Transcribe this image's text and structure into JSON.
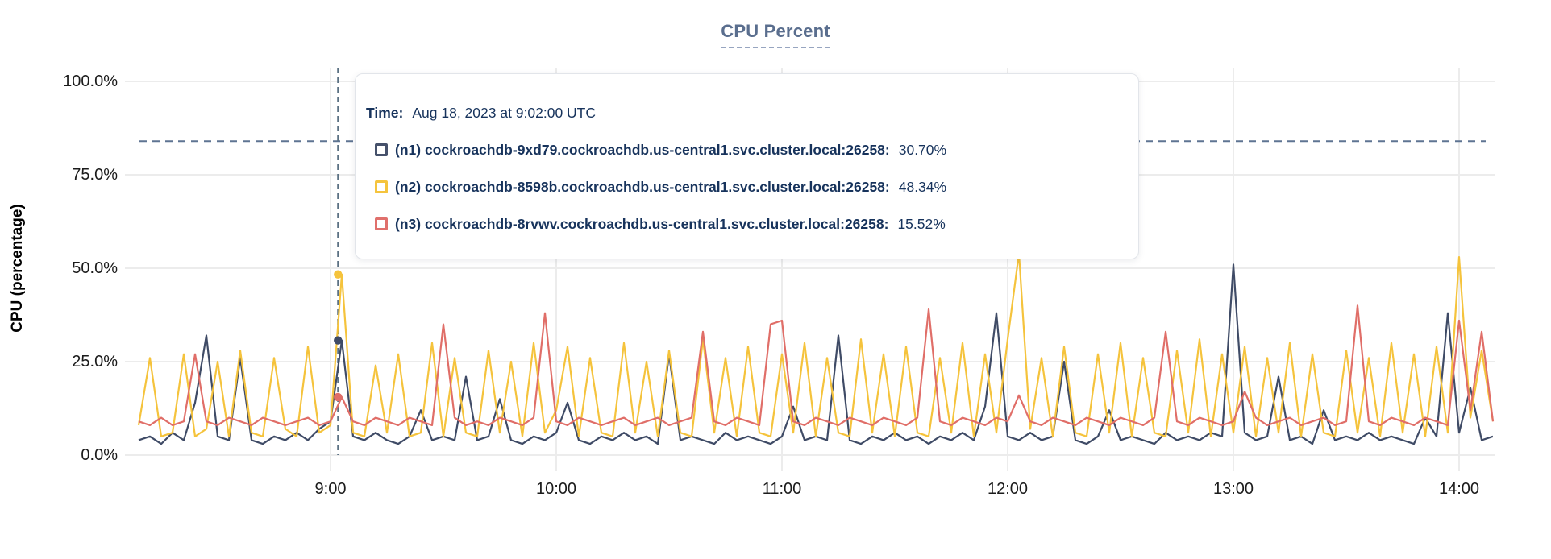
{
  "title": "CPU Percent",
  "y_axis_title": "CPU (percentage)",
  "tooltip": {
    "time_label": "Time:",
    "time_value": "Aug 18, 2023 at 9:02:00 UTC",
    "series": [
      {
        "label": "(n1) cockroachdb-9xd79.cockroachdb.us-central1.svc.cluster.local:26258:",
        "value": "30.70%",
        "color": "#46516b"
      },
      {
        "label": "(n2) cockroachdb-8598b.cockroachdb.us-central1.svc.cluster.local:26258:",
        "value": "48.34%",
        "color": "#f5c43d"
      },
      {
        "label": "(n3) cockroachdb-8rvwv.cockroachdb.us-central1.svc.cluster.local:26258:",
        "value": "15.52%",
        "color": "#e0706c"
      }
    ]
  },
  "colors": {
    "title": "#5a6e8e",
    "tooltip_text": "#17335c",
    "grid": "#ececec",
    "threshold_dash": "#5e7492",
    "crosshair_dash": "#5b7183",
    "tick_text": "#1b1b1b"
  },
  "chart_data": {
    "type": "line",
    "title": "CPU Percent",
    "xlabel": "",
    "ylabel": "CPU (percentage)",
    "ylim": [
      0,
      100
    ],
    "grid": true,
    "legend_position": "tooltip-overlay",
    "y_ticks": [
      {
        "value": 0,
        "label": "0.0%"
      },
      {
        "value": 25,
        "label": "25.0%"
      },
      {
        "value": 50,
        "label": "50.0%"
      },
      {
        "value": 75,
        "label": "75.0%"
      },
      {
        "value": 100,
        "label": "100.0%"
      }
    ],
    "x_ticks": [
      {
        "hour": 9,
        "label": "9:00"
      },
      {
        "hour": 10,
        "label": "10:00"
      },
      {
        "hour": 11,
        "label": "11:00"
      },
      {
        "hour": 12,
        "label": "12:00"
      },
      {
        "hour": 13,
        "label": "13:00"
      },
      {
        "hour": 14,
        "label": "14:00"
      }
    ],
    "threshold_line_percent": 84,
    "hover": {
      "x_hour": 9.033,
      "time": "Aug 18, 2023 at 9:02:00 UTC",
      "values": [
        30.7,
        48.34,
        15.52
      ]
    },
    "x_start_hour": 8.15,
    "x_step_hour": 0.05,
    "x_unit": "hour of day (UTC)",
    "series": [
      {
        "name": "(n1) cockroachdb-9xd79.cockroachdb.us-central1.svc.cluster.local:26258",
        "color": "#3f4b66",
        "values": [
          4,
          5,
          3,
          6,
          4,
          14,
          32,
          5,
          4,
          26,
          4,
          3,
          5,
          4,
          6,
          4,
          7,
          9,
          30.7,
          5,
          4,
          6,
          4,
          3,
          5,
          12,
          4,
          5,
          4,
          21,
          4,
          5,
          15,
          4,
          3,
          5,
          4,
          6,
          14,
          4,
          3,
          5,
          4,
          6,
          4,
          5,
          3,
          27,
          4,
          5,
          4,
          3,
          6,
          4,
          5,
          4,
          3,
          5,
          13,
          4,
          5,
          4,
          32,
          4,
          3,
          5,
          4,
          6,
          4,
          5,
          3,
          5,
          4,
          6,
          4,
          13,
          38,
          5,
          4,
          6,
          4,
          5,
          25,
          4,
          3,
          5,
          12,
          4,
          5,
          4,
          3,
          6,
          4,
          5,
          4,
          6,
          5,
          51,
          6,
          4,
          5,
          21,
          4,
          5,
          3,
          12,
          4,
          5,
          4,
          6,
          4,
          5,
          4,
          3,
          10,
          5,
          38,
          6,
          18,
          4,
          5
        ]
      },
      {
        "name": "(n2) cockroachdb-8598b.cockroachdb.us-central1.svc.cluster.local:26258",
        "color": "#f5c33c",
        "values": [
          8,
          26,
          5,
          6,
          27,
          5,
          7,
          25,
          5,
          28,
          6,
          5,
          26,
          7,
          5,
          29,
          6,
          8,
          48.34,
          6,
          5,
          24,
          6,
          27,
          5,
          6,
          30,
          5,
          26,
          6,
          5,
          28,
          6,
          25,
          5,
          30,
          6,
          12,
          29,
          5,
          26,
          6,
          5,
          30,
          6,
          25,
          5,
          28,
          6,
          5,
          31,
          6,
          26,
          5,
          29,
          6,
          5,
          27,
          6,
          30,
          5,
          26,
          6,
          5,
          31,
          6,
          27,
          5,
          29,
          6,
          5,
          26,
          6,
          30,
          5,
          27,
          6,
          31,
          54,
          7,
          26,
          5,
          29,
          6,
          5,
          27,
          6,
          30,
          5,
          26,
          6,
          5,
          28,
          6,
          31,
          5,
          27,
          6,
          29,
          5,
          26,
          6,
          30,
          5,
          27,
          6,
          5,
          28,
          6,
          26,
          5,
          30,
          6,
          27,
          5,
          29,
          6,
          53,
          10,
          28,
          9
        ]
      },
      {
        "name": "(n3) cockroachdb-8rvwv.cockroachdb.us-central1.svc.cluster.local:26258",
        "color": "#e06e68",
        "values": [
          9,
          8,
          10,
          8,
          9,
          27,
          9,
          8,
          10,
          9,
          8,
          10,
          9,
          8,
          9,
          10,
          8,
          9,
          15.52,
          9,
          8,
          10,
          9,
          8,
          10,
          9,
          8,
          35,
          10,
          8,
          9,
          8,
          10,
          9,
          8,
          10,
          38,
          9,
          8,
          10,
          9,
          8,
          9,
          10,
          8,
          9,
          10,
          8,
          9,
          10,
          33,
          9,
          8,
          10,
          9,
          8,
          35,
          36,
          9,
          8,
          10,
          9,
          8,
          10,
          9,
          8,
          10,
          9,
          8,
          10,
          39,
          9,
          8,
          10,
          9,
          8,
          10,
          9,
          16,
          9,
          8,
          10,
          9,
          8,
          10,
          9,
          8,
          10,
          9,
          8,
          10,
          33,
          9,
          8,
          10,
          9,
          8,
          9,
          17,
          10,
          8,
          9,
          10,
          8,
          9,
          10,
          8,
          9,
          40,
          9,
          8,
          10,
          9,
          8,
          10,
          9,
          8,
          36,
          12,
          33,
          9
        ]
      }
    ]
  }
}
